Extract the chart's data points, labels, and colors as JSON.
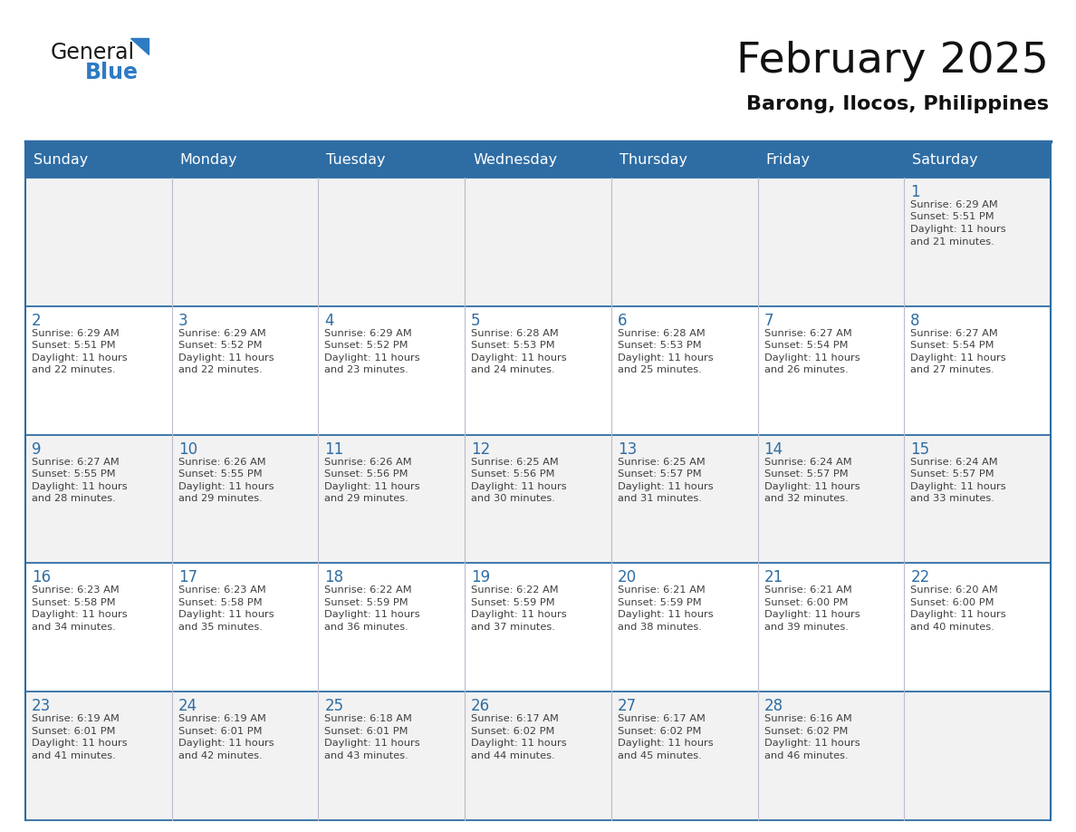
{
  "title": "February 2025",
  "subtitle": "Barong, Ilocos, Philippines",
  "header_bg": "#2E6DA4",
  "header_text_color": "#FFFFFF",
  "cell_bg_white": "#FFFFFF",
  "cell_bg_gray": "#F0F0F0",
  "day_number_color": "#2E6DA4",
  "info_text_color": "#404040",
  "border_color": "#2E6DA4",
  "sep_line_color": "#AAAACC",
  "days_of_week": [
    "Sunday",
    "Monday",
    "Tuesday",
    "Wednesday",
    "Thursday",
    "Friday",
    "Saturday"
  ],
  "weeks": [
    [
      {
        "day": "",
        "info": ""
      },
      {
        "day": "",
        "info": ""
      },
      {
        "day": "",
        "info": ""
      },
      {
        "day": "",
        "info": ""
      },
      {
        "day": "",
        "info": ""
      },
      {
        "day": "",
        "info": ""
      },
      {
        "day": "1",
        "info": "Sunrise: 6:29 AM\nSunset: 5:51 PM\nDaylight: 11 hours\nand 21 minutes."
      }
    ],
    [
      {
        "day": "2",
        "info": "Sunrise: 6:29 AM\nSunset: 5:51 PM\nDaylight: 11 hours\nand 22 minutes."
      },
      {
        "day": "3",
        "info": "Sunrise: 6:29 AM\nSunset: 5:52 PM\nDaylight: 11 hours\nand 22 minutes."
      },
      {
        "day": "4",
        "info": "Sunrise: 6:29 AM\nSunset: 5:52 PM\nDaylight: 11 hours\nand 23 minutes."
      },
      {
        "day": "5",
        "info": "Sunrise: 6:28 AM\nSunset: 5:53 PM\nDaylight: 11 hours\nand 24 minutes."
      },
      {
        "day": "6",
        "info": "Sunrise: 6:28 AM\nSunset: 5:53 PM\nDaylight: 11 hours\nand 25 minutes."
      },
      {
        "day": "7",
        "info": "Sunrise: 6:27 AM\nSunset: 5:54 PM\nDaylight: 11 hours\nand 26 minutes."
      },
      {
        "day": "8",
        "info": "Sunrise: 6:27 AM\nSunset: 5:54 PM\nDaylight: 11 hours\nand 27 minutes."
      }
    ],
    [
      {
        "day": "9",
        "info": "Sunrise: 6:27 AM\nSunset: 5:55 PM\nDaylight: 11 hours\nand 28 minutes."
      },
      {
        "day": "10",
        "info": "Sunrise: 6:26 AM\nSunset: 5:55 PM\nDaylight: 11 hours\nand 29 minutes."
      },
      {
        "day": "11",
        "info": "Sunrise: 6:26 AM\nSunset: 5:56 PM\nDaylight: 11 hours\nand 29 minutes."
      },
      {
        "day": "12",
        "info": "Sunrise: 6:25 AM\nSunset: 5:56 PM\nDaylight: 11 hours\nand 30 minutes."
      },
      {
        "day": "13",
        "info": "Sunrise: 6:25 AM\nSunset: 5:57 PM\nDaylight: 11 hours\nand 31 minutes."
      },
      {
        "day": "14",
        "info": "Sunrise: 6:24 AM\nSunset: 5:57 PM\nDaylight: 11 hours\nand 32 minutes."
      },
      {
        "day": "15",
        "info": "Sunrise: 6:24 AM\nSunset: 5:57 PM\nDaylight: 11 hours\nand 33 minutes."
      }
    ],
    [
      {
        "day": "16",
        "info": "Sunrise: 6:23 AM\nSunset: 5:58 PM\nDaylight: 11 hours\nand 34 minutes."
      },
      {
        "day": "17",
        "info": "Sunrise: 6:23 AM\nSunset: 5:58 PM\nDaylight: 11 hours\nand 35 minutes."
      },
      {
        "day": "18",
        "info": "Sunrise: 6:22 AM\nSunset: 5:59 PM\nDaylight: 11 hours\nand 36 minutes."
      },
      {
        "day": "19",
        "info": "Sunrise: 6:22 AM\nSunset: 5:59 PM\nDaylight: 11 hours\nand 37 minutes."
      },
      {
        "day": "20",
        "info": "Sunrise: 6:21 AM\nSunset: 5:59 PM\nDaylight: 11 hours\nand 38 minutes."
      },
      {
        "day": "21",
        "info": "Sunrise: 6:21 AM\nSunset: 6:00 PM\nDaylight: 11 hours\nand 39 minutes."
      },
      {
        "day": "22",
        "info": "Sunrise: 6:20 AM\nSunset: 6:00 PM\nDaylight: 11 hours\nand 40 minutes."
      }
    ],
    [
      {
        "day": "23",
        "info": "Sunrise: 6:19 AM\nSunset: 6:01 PM\nDaylight: 11 hours\nand 41 minutes."
      },
      {
        "day": "24",
        "info": "Sunrise: 6:19 AM\nSunset: 6:01 PM\nDaylight: 11 hours\nand 42 minutes."
      },
      {
        "day": "25",
        "info": "Sunrise: 6:18 AM\nSunset: 6:01 PM\nDaylight: 11 hours\nand 43 minutes."
      },
      {
        "day": "26",
        "info": "Sunrise: 6:17 AM\nSunset: 6:02 PM\nDaylight: 11 hours\nand 44 minutes."
      },
      {
        "day": "27",
        "info": "Sunrise: 6:17 AM\nSunset: 6:02 PM\nDaylight: 11 hours\nand 45 minutes."
      },
      {
        "day": "28",
        "info": "Sunrise: 6:16 AM\nSunset: 6:02 PM\nDaylight: 11 hours\nand 46 minutes."
      },
      {
        "day": "",
        "info": ""
      }
    ]
  ],
  "logo_general_color": "#1a1a1a",
  "logo_blue_color": "#2E7BC4",
  "logo_triangle_color": "#2E7BC4",
  "week_bg_colors": [
    "#F2F2F2",
    "#FFFFFF",
    "#F2F2F2",
    "#FFFFFF",
    "#F2F2F2"
  ]
}
